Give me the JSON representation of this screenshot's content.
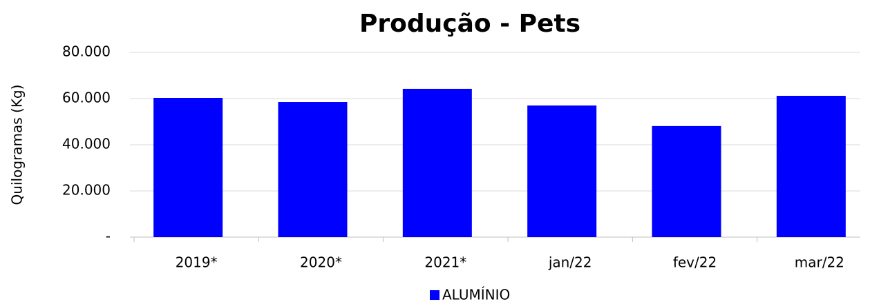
{
  "chart_data": {
    "type": "bar",
    "title": "Produção - Pets",
    "y_label": "Quilogramas (Kg)",
    "categories": [
      "2019*",
      "2020*",
      "2021*",
      "jan/22",
      "fev/22",
      "mar/22"
    ],
    "series": [
      {
        "name": "ALUMÍNIO",
        "color": "#0000ff",
        "values": [
          60300,
          58500,
          64200,
          57000,
          48100,
          61200
        ]
      }
    ],
    "ylim": [
      0,
      80000
    ],
    "yticks": [
      {
        "value": 0,
        "label": "-"
      },
      {
        "value": 20000,
        "label": "20.000"
      },
      {
        "value": 40000,
        "label": "40.000"
      },
      {
        "value": 60000,
        "label": "60.000"
      },
      {
        "value": 80000,
        "label": "80.000"
      }
    ],
    "grid": true,
    "legend": "bottom"
  }
}
